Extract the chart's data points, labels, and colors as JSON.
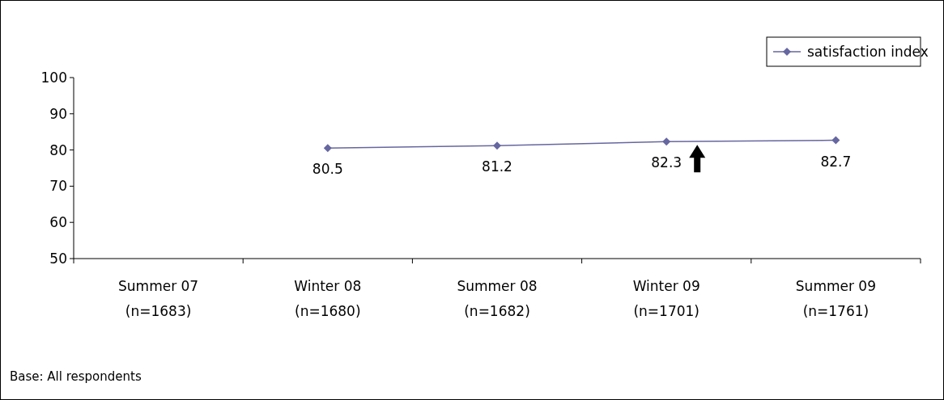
{
  "chart_data": {
    "type": "line",
    "categories": [
      "Summer 07\n(n=1683)",
      "Winter 08\n(n=1680)",
      "Summer 08\n(n=1682)",
      "Winter 09\n(n=1701)",
      "Summer 09\n(n=1761)"
    ],
    "series": [
      {
        "name": "satisfaction index",
        "color": "#6666a0",
        "values": [
          null,
          80.5,
          81.2,
          82.3,
          82.7
        ]
      }
    ],
    "ylim": [
      50,
      100
    ],
    "yticks": [
      50,
      60,
      70,
      80,
      90,
      100
    ],
    "grid": false,
    "legend": "top right",
    "marker": "diamond",
    "line_style": "solid",
    "data_labels": true,
    "annotations": [
      "Base:  All respondents"
    ]
  }
}
